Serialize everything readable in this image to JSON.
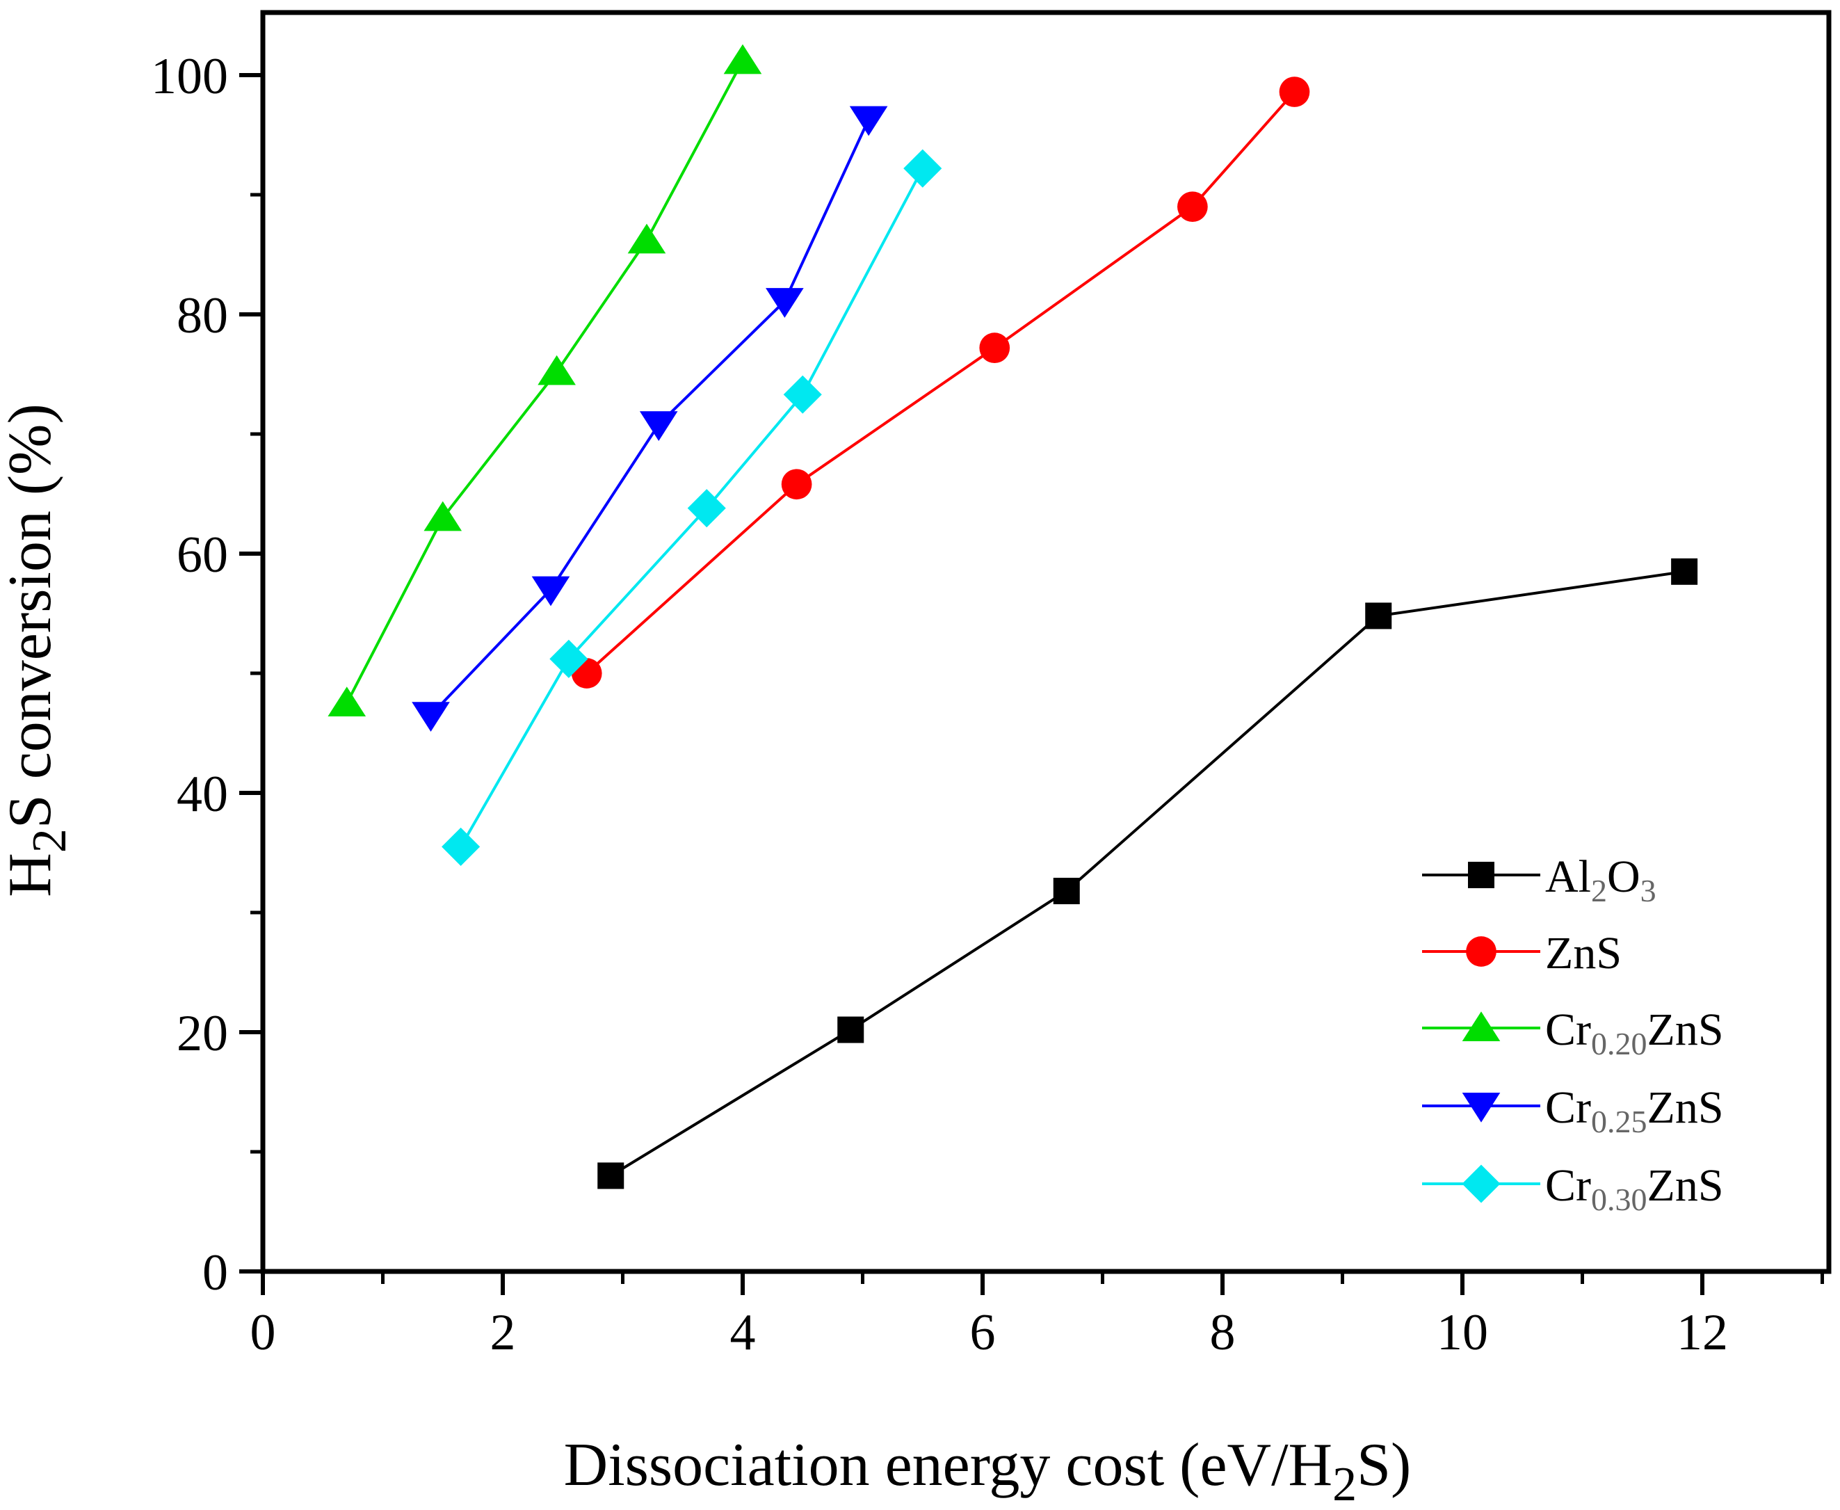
{
  "chart_data": {
    "type": "line",
    "xlabel": "Dissociation energy cost (eV/H2S)",
    "xlabel_parts": {
      "pre": "Dissociation energy cost (eV/H",
      "sub": "2",
      "post": "S)"
    },
    "ylabel": "H2S conversion (%)",
    "ylabel_parts": {
      "pre": "H",
      "sub": "2",
      "post": "S conversion (%)"
    },
    "xlim": [
      0,
      13
    ],
    "ylim": [
      0,
      100
    ],
    "xticks": [
      0,
      2,
      4,
      6,
      8,
      10,
      12
    ],
    "yticks": [
      0,
      20,
      40,
      60,
      80,
      100
    ],
    "legend_position": "lower-right",
    "series": [
      {
        "name": "Al2O3",
        "label": {
          "parts": [
            {
              "t": "Al",
              "sub": false
            },
            {
              "t": "2",
              "sub": true
            },
            {
              "t": "O",
              "sub": false
            },
            {
              "t": "3",
              "sub": true
            }
          ]
        },
        "color": "#000000",
        "marker": "square",
        "x": [
          2.9,
          4.9,
          6.7,
          9.3,
          11.85
        ],
        "y": [
          8,
          20.2,
          31.8,
          54.8,
          58.5
        ]
      },
      {
        "name": "ZnS",
        "label": {
          "parts": [
            {
              "t": "ZnS",
              "sub": false
            }
          ]
        },
        "color": "#ff0000",
        "marker": "circle",
        "x": [
          2.7,
          4.45,
          6.1,
          7.75,
          8.6
        ],
        "y": [
          50,
          65.8,
          77.2,
          89,
          98.6
        ]
      },
      {
        "name": "Cr0.20ZnS",
        "label": {
          "parts": [
            {
              "t": "Cr",
              "sub": false
            },
            {
              "t": "0.20",
              "sub": true
            },
            {
              "t": "ZnS",
              "sub": false
            }
          ]
        },
        "color": "#00dd00",
        "marker": "triangle-up",
        "x": [
          0.7,
          1.5,
          2.45,
          3.2,
          4.0
        ],
        "y": [
          47.5,
          63,
          75.2,
          86.2,
          101.2
        ]
      },
      {
        "name": "Cr0.25ZnS",
        "label": {
          "parts": [
            {
              "t": "Cr",
              "sub": false
            },
            {
              "t": "0.25",
              "sub": true
            },
            {
              "t": "ZnS",
              "sub": false
            }
          ]
        },
        "color": "#0000ff",
        "marker": "triangle-down",
        "x": [
          1.4,
          2.4,
          3.3,
          4.35,
          5.05
        ],
        "y": [
          46.5,
          57,
          70.8,
          81.1,
          96.3
        ]
      },
      {
        "name": "Cr0.30ZnS",
        "label": {
          "parts": [
            {
              "t": "Cr",
              "sub": false
            },
            {
              "t": "0.30",
              "sub": true
            },
            {
              "t": "ZnS",
              "sub": false
            }
          ]
        },
        "color": "#00e8f0",
        "marker": "diamond",
        "x": [
          1.65,
          2.55,
          3.7,
          4.5,
          5.5
        ],
        "y": [
          35.5,
          51.2,
          63.8,
          73.3,
          92.2
        ]
      }
    ]
  }
}
